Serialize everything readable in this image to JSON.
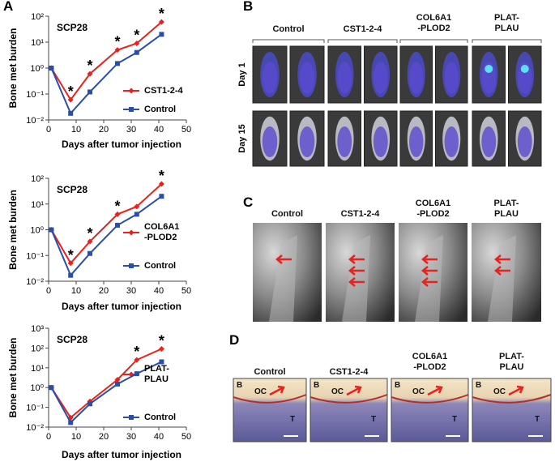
{
  "chart_data": [
    {
      "type": "line",
      "title": "SCP28",
      "xlabel": "Days after tumor injection",
      "ylabel": "Bone met burden",
      "log": true,
      "x": [
        1,
        8,
        15,
        25,
        32,
        41
      ],
      "xlim": [
        0,
        50
      ],
      "xticks": [
        0,
        10,
        20,
        30,
        40,
        50
      ],
      "ylim": [
        0.01,
        100
      ],
      "yticks": [
        {
          "value": 0.01,
          "label": "10⁻²"
        },
        {
          "value": 0.1,
          "label": "10⁻¹"
        },
        {
          "value": 1,
          "label": "10⁰"
        },
        {
          "value": 10,
          "label": "10¹"
        },
        {
          "value": 100,
          "label": "10²"
        }
      ],
      "legend": "lower right",
      "series": [
        {
          "name": "CST1-2-4",
          "color": "#e8221c",
          "marker": "diamond",
          "values": [
            1,
            0.06,
            0.6,
            5,
            9,
            60
          ]
        },
        {
          "name": "Control",
          "color": "#2a4fa8",
          "marker": "square",
          "values": [
            1,
            0.018,
            0.12,
            1.5,
            4,
            20
          ]
        }
      ],
      "annotations": [
        {
          "x": 8,
          "label": "*"
        },
        {
          "x": 15,
          "label": "*"
        },
        {
          "x": 25,
          "label": "*"
        },
        {
          "x": 32,
          "label": "*"
        },
        {
          "x": 41,
          "label": "*"
        }
      ]
    },
    {
      "type": "line",
      "title": "SCP28",
      "xlabel": "Days after tumor injection",
      "ylabel": "Bone met burden",
      "log": true,
      "x": [
        1,
        8,
        15,
        25,
        32,
        41
      ],
      "xlim": [
        0,
        50
      ],
      "xticks": [
        0,
        10,
        20,
        30,
        40,
        50
      ],
      "ylim": [
        0.01,
        100
      ],
      "yticks": [
        {
          "value": 0.01,
          "label": "10⁻²"
        },
        {
          "value": 0.1,
          "label": "10⁻¹"
        },
        {
          "value": 1,
          "label": "10⁰"
        },
        {
          "value": 10,
          "label": "10¹"
        },
        {
          "value": 100,
          "label": "10²"
        }
      ],
      "legend": "lower right",
      "series": [
        {
          "name": "COL6A1\n-PLOD2",
          "color": "#e8221c",
          "marker": "diamond",
          "values": [
            1,
            0.05,
            0.35,
            4,
            8,
            60
          ]
        },
        {
          "name": "Control",
          "color": "#2a4fa8",
          "marker": "square",
          "values": [
            1,
            0.017,
            0.12,
            1.5,
            4,
            20
          ]
        }
      ],
      "annotations": [
        {
          "x": 8,
          "label": "*"
        },
        {
          "x": 15,
          "label": "*"
        },
        {
          "x": 25,
          "label": "*"
        },
        {
          "x": 41,
          "label": "*"
        }
      ]
    },
    {
      "type": "line",
      "title": "SCP28",
      "xlabel": "Days after tumor injection",
      "ylabel": "Bone met burden",
      "log": true,
      "x": [
        1,
        8,
        15,
        25,
        32,
        41
      ],
      "xlim": [
        0,
        50
      ],
      "xticks": [
        0,
        10,
        20,
        30,
        40,
        50
      ],
      "ylim": [
        0.01,
        1000
      ],
      "yticks": [
        {
          "value": 0.01,
          "label": "10⁻²"
        },
        {
          "value": 0.1,
          "label": "10⁻¹"
        },
        {
          "value": 1,
          "label": "10⁰"
        },
        {
          "value": 10,
          "label": "10¹"
        },
        {
          "value": 100,
          "label": "10²"
        },
        {
          "value": 1000,
          "label": "10³"
        }
      ],
      "legend": "lower right",
      "series": [
        {
          "name": "PLAT-\nPLAU",
          "color": "#e8221c",
          "marker": "diamond",
          "values": [
            1,
            0.03,
            0.2,
            2.5,
            25,
            90
          ]
        },
        {
          "name": "Control",
          "color": "#2a4fa8",
          "marker": "square",
          "values": [
            1,
            0.017,
            0.15,
            1.5,
            5,
            20
          ]
        }
      ],
      "annotations": [
        {
          "x": 32,
          "label": "*"
        },
        {
          "x": 41,
          "label": "*"
        }
      ]
    }
  ],
  "panel_labels": [
    "A",
    "B",
    "C",
    "D"
  ],
  "panel_b": {
    "headers": [
      "Control",
      "CST1-2-4",
      "COL6A1\n-PLOD2",
      "PLAT-\nPLAU"
    ],
    "rows": [
      "Day 1",
      "Day 15"
    ]
  },
  "panel_c": {
    "headers": [
      "Control",
      "CST1-2-4",
      "COL6A1\n-PLOD2",
      "PLAT-\nPLAU"
    ]
  },
  "panel_d": {
    "headers": [
      "Control",
      "CST1-2-4",
      "COL6A1\n-PLOD2",
      "PLAT-\nPLAU"
    ],
    "image_labels": [
      "B",
      "OC",
      "T"
    ]
  }
}
